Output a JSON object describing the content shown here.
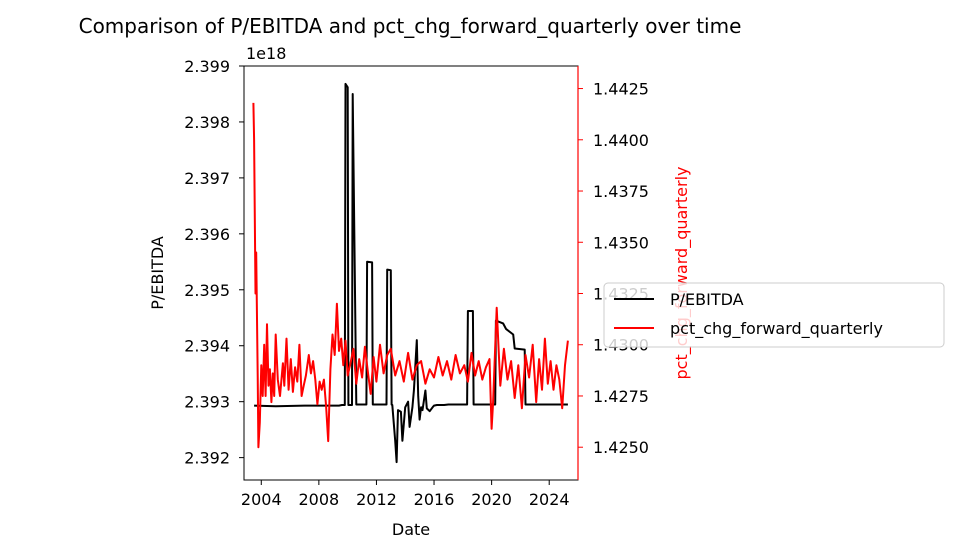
{
  "chart_data": {
    "type": "line",
    "title": "Comparison of P/EBITDA and pct_chg_forward_quarterly over time",
    "xlabel": "Date",
    "x_ticks": [
      "2004",
      "2008",
      "2012",
      "2016",
      "2020",
      "2024"
    ],
    "x_range": [
      2002.8,
      2026.0
    ],
    "left_axis": {
      "label": "P/EBITDA",
      "offset_text": "1e18",
      "color": "#000000",
      "ticks": [
        "2.392",
        "2.393",
        "2.394",
        "2.395",
        "2.396",
        "2.397",
        "2.398",
        "2.399"
      ],
      "ylim": [
        2.3916,
        2.399
      ]
    },
    "right_axis": {
      "label": "pct_chg_forward_quarterly",
      "color": "#ff0000",
      "ticks": [
        "1.4250",
        "1.4275",
        "1.4300",
        "1.4325",
        "1.4350",
        "1.4375",
        "1.4400",
        "1.4425"
      ],
      "ylim": [
        1.4234,
        1.4436
      ]
    },
    "legend": {
      "placement": "right-outside"
    },
    "series": [
      {
        "name": "P/EBITDA",
        "axis": "left",
        "color": "#000000",
        "x": [
          2003.5,
          2005,
          2007,
          2009.4,
          2009.6,
          2009.7,
          2009.8,
          2009.85,
          2010.0,
          2010.05,
          2010.1,
          2010.3,
          2010.35,
          2010.6,
          2011.0,
          2011.3,
          2011.35,
          2011.7,
          2011.75,
          2012.0,
          2012.7,
          2012.75,
          2013.0,
          2013.05,
          2013.1,
          2013.3,
          2013.4,
          2013.5,
          2013.7,
          2013.8,
          2014.0,
          2014.2,
          2014.3,
          2014.5,
          2014.6,
          2014.8,
          2014.9,
          2015.0,
          2015.1,
          2015.2,
          2015.4,
          2015.5,
          2015.7,
          2015.9,
          2016.0,
          2016.2,
          2016.4,
          2016.7,
          2017.0,
          2018.0,
          2018.3,
          2018.35,
          2018.7,
          2018.75,
          2019.0,
          2020.0,
          2020.25,
          2020.3,
          2020.8,
          2021.0,
          2021.5,
          2021.6,
          2022.3,
          2022.35,
          2023.0,
          2024.0,
          2025.3
        ],
        "values": [
          2.39293,
          2.39292,
          2.39293,
          2.39293,
          2.39294,
          2.39294,
          2.39294,
          2.39868,
          2.39862,
          2.39294,
          2.39294,
          2.39294,
          2.3985,
          2.39295,
          2.39295,
          2.39295,
          2.3955,
          2.39549,
          2.39295,
          2.39295,
          2.39295,
          2.39536,
          2.39535,
          2.39295,
          2.39294,
          2.3923,
          2.39192,
          2.39285,
          2.39282,
          2.3923,
          2.3929,
          2.393,
          2.39255,
          2.3929,
          2.3932,
          2.3941,
          2.3931,
          2.39268,
          2.3929,
          2.39285,
          2.3932,
          2.39288,
          2.39283,
          2.3929,
          2.39293,
          2.39294,
          2.39294,
          2.39294,
          2.39295,
          2.39295,
          2.39295,
          2.39462,
          2.39462,
          2.39295,
          2.39295,
          2.39295,
          2.39295,
          2.39445,
          2.3944,
          2.3943,
          2.3942,
          2.39395,
          2.39393,
          2.39295,
          2.39295,
          2.39295,
          2.39295
        ]
      },
      {
        "name": "pct_chg_forward_quarterly",
        "axis": "right",
        "color": "#ff0000",
        "x": [
          2003.45,
          2003.5,
          2003.6,
          2003.65,
          2003.75,
          2003.8,
          2003.9,
          2004.0,
          2004.1,
          2004.2,
          2004.3,
          2004.4,
          2004.5,
          2004.6,
          2004.7,
          2004.8,
          2004.9,
          2005.0,
          2005.15,
          2005.3,
          2005.5,
          2005.6,
          2005.75,
          2005.9,
          2006.05,
          2006.2,
          2006.35,
          2006.5,
          2006.65,
          2006.8,
          2006.95,
          2007.1,
          2007.3,
          2007.45,
          2007.6,
          2007.75,
          2007.9,
          2008.05,
          2008.2,
          2008.35,
          2008.5,
          2008.65,
          2008.8,
          2008.95,
          2009.1,
          2009.25,
          2009.4,
          2009.55,
          2009.7,
          2009.85,
          2010.0,
          2010.2,
          2010.4,
          2010.6,
          2010.8,
          2011.0,
          2011.2,
          2011.4,
          2011.6,
          2011.8,
          2012.0,
          2012.25,
          2012.5,
          2012.75,
          2013.0,
          2013.3,
          2013.6,
          2013.9,
          2014.2,
          2014.5,
          2014.8,
          2015.1,
          2015.4,
          2015.7,
          2016.0,
          2016.3,
          2016.6,
          2016.9,
          2017.2,
          2017.5,
          2017.8,
          2018.1,
          2018.35,
          2018.6,
          2018.85,
          2019.1,
          2019.35,
          2019.6,
          2019.85,
          2020.0,
          2020.1,
          2020.35,
          2020.6,
          2020.85,
          2021.1,
          2021.35,
          2021.6,
          2021.85,
          2022.1,
          2022.35,
          2022.6,
          2022.85,
          2023.1,
          2023.3,
          2023.5,
          2023.7,
          2023.9,
          2024.1,
          2024.3,
          2024.5,
          2024.7,
          2024.9,
          2025.1,
          2025.3
        ],
        "values": [
          1.4418,
          1.44,
          1.4325,
          1.4345,
          1.4285,
          1.425,
          1.4262,
          1.429,
          1.4275,
          1.43,
          1.4275,
          1.431,
          1.428,
          1.4288,
          1.4272,
          1.4286,
          1.4275,
          1.4305,
          1.4283,
          1.4275,
          1.4291,
          1.428,
          1.4303,
          1.4278,
          1.4293,
          1.4277,
          1.4289,
          1.4282,
          1.43,
          1.4275,
          1.428,
          1.4285,
          1.4295,
          1.4286,
          1.4292,
          1.4283,
          1.4271,
          1.4282,
          1.4278,
          1.4283,
          1.427,
          1.4253,
          1.4288,
          1.4305,
          1.4295,
          1.432,
          1.4297,
          1.4303,
          1.429,
          1.4302,
          1.4285,
          1.4291,
          1.4298,
          1.4281,
          1.4293,
          1.4284,
          1.4299,
          1.4287,
          1.4276,
          1.4294,
          1.4282,
          1.43,
          1.4286,
          1.4295,
          1.4298,
          1.4285,
          1.4292,
          1.4282,
          1.4296,
          1.4283,
          1.429,
          1.4292,
          1.4281,
          1.4288,
          1.4284,
          1.4294,
          1.4285,
          1.4292,
          1.4283,
          1.4295,
          1.4286,
          1.429,
          1.4282,
          1.4296,
          1.4285,
          1.4292,
          1.4283,
          1.4289,
          1.4293,
          1.4259,
          1.4272,
          1.4318,
          1.428,
          1.4298,
          1.4283,
          1.4292,
          1.4274,
          1.429,
          1.4269,
          1.4295,
          1.4284,
          1.43,
          1.4272,
          1.4293,
          1.4278,
          1.4303,
          1.4281,
          1.4292,
          1.4278,
          1.429,
          1.4283,
          1.4269,
          1.429,
          1.4302
        ]
      }
    ]
  }
}
